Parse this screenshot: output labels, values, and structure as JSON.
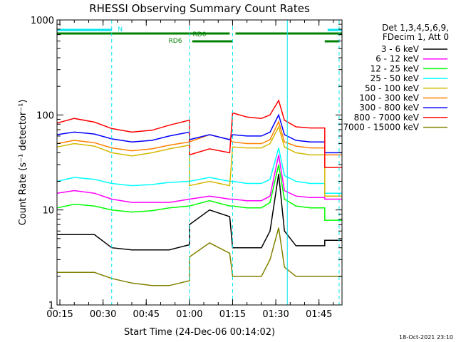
{
  "chart_data": {
    "type": "line",
    "title": "RHESSI Observing Summary Count Rates",
    "xlabel": "Start Time (24-Dec-06 00:14:02)",
    "ylabel": "Count Rate (s⁻¹ detector⁻¹)",
    "y_scale": "log",
    "ylim": [
      1,
      1000
    ],
    "xlim": [
      "00:14",
      "01:53"
    ],
    "x_ticks": [
      "00:15",
      "00:30",
      "00:45",
      "01:00",
      "01:15",
      "01:30",
      "01:45"
    ],
    "y_ticks": [
      "1",
      "10",
      "100",
      "1000"
    ],
    "legend_header": [
      "Det 1,3,4,5,6,9,",
      "FDecim 1, Att 0"
    ],
    "timestamp": "18-Oct-2021 23:10",
    "state_bars": [
      {
        "label": "N",
        "color": "#00e5ee",
        "segments": [
          [
            "00:14",
            "00:33"
          ],
          [
            "01:48",
            "01:53"
          ]
        ]
      },
      {
        "label": "RD0",
        "color": "#008000",
        "segments": [
          [
            "00:14",
            "01:14"
          ],
          [
            "01:16",
            "01:53"
          ]
        ]
      },
      {
        "label": "RD6",
        "color": "#008000",
        "segments": [
          [
            "01:01",
            "01:15"
          ],
          [
            "01:47",
            "01:52"
          ]
        ]
      }
    ],
    "markers": [
      {
        "time": "00:14",
        "color": "#00e5ee",
        "style": "solid"
      },
      {
        "time": "00:33",
        "color": "#00e5ee",
        "style": "dashed"
      },
      {
        "time": "01:00",
        "color": "#00e5ee",
        "style": "dashed"
      },
      {
        "time": "01:15",
        "color": "#00e5ee",
        "style": "dashed"
      },
      {
        "time": "01:34",
        "color": "#00e5ee",
        "style": "solid"
      },
      {
        "time": "01:52",
        "color": "#00e5ee",
        "style": "dashed"
      }
    ],
    "x": [
      "00:14",
      "00:20",
      "00:27",
      "00:33",
      "00:40",
      "00:47",
      "00:53",
      "01:00",
      "01:00",
      "01:07",
      "01:14",
      "01:15",
      "01:20",
      "01:25",
      "01:28",
      "01:31",
      "01:33",
      "01:37",
      "01:42",
      "01:47",
      "01:47",
      "01:53"
    ],
    "series": [
      {
        "name": "3 - 6 keV",
        "color": "#000000",
        "values": [
          5.5,
          5.5,
          5.5,
          4.0,
          3.8,
          3.8,
          3.8,
          4.3,
          7.0,
          10.0,
          8.5,
          4.0,
          4.0,
          4.0,
          6.0,
          24.0,
          6.0,
          4.2,
          4.2,
          4.2,
          4.8,
          4.8
        ]
      },
      {
        "name": "6 - 12 keV",
        "color": "#ff00ff",
        "values": [
          15,
          16,
          15,
          13,
          12,
          12,
          12,
          13,
          13,
          14,
          13,
          13,
          12.5,
          12.5,
          14,
          38,
          16,
          14,
          13.5,
          13.5,
          13,
          13
        ]
      },
      {
        "name": "12 - 25 keV",
        "color": "#00ff00",
        "values": [
          10.5,
          11.5,
          11,
          10,
          9.5,
          9.8,
          10.5,
          11,
          11,
          12.5,
          11,
          11,
          10.5,
          10.5,
          12,
          30,
          13,
          11,
          10.5,
          10.5,
          7.8,
          7.8
        ]
      },
      {
        "name": "25 - 50 keV",
        "color": "#00ffff",
        "values": [
          20,
          22,
          21,
          19,
          18,
          18.5,
          19.5,
          20,
          20,
          22,
          20,
          20,
          19,
          19,
          21,
          45,
          23,
          20,
          19,
          19,
          15,
          15
        ]
      },
      {
        "name": "50 - 100 keV",
        "color": "#d4b800",
        "values": [
          46,
          50,
          47,
          40,
          37,
          40,
          44,
          48,
          18,
          20,
          18,
          46,
          45,
          45,
          50,
          75,
          46,
          40,
          38,
          38,
          14,
          14
        ]
      },
      {
        "name": "100 - 300 keV",
        "color": "#ff8000",
        "values": [
          50,
          54,
          51,
          45,
          42,
          44,
          48,
          52,
          52,
          62,
          55,
          52,
          50,
          50,
          55,
          85,
          52,
          47,
          45,
          45,
          38,
          38
        ]
      },
      {
        "name": "300 - 800 keV",
        "color": "#0000ff",
        "values": [
          62,
          66,
          63,
          56,
          52,
          54,
          60,
          66,
          55,
          62,
          55,
          62,
          60,
          60,
          66,
          100,
          62,
          54,
          52,
          52,
          40,
          40
        ]
      },
      {
        "name": "800 - 7000 keV",
        "color": "#ff0000",
        "values": [
          82,
          92,
          84,
          72,
          66,
          69,
          78,
          88,
          38,
          44,
          40,
          105,
          95,
          92,
          100,
          142,
          88,
          75,
          73,
          73,
          28,
          28
        ]
      },
      {
        "name": "7000 - 15000 keV",
        "color": "#808000",
        "values": [
          2.2,
          2.2,
          2.2,
          1.9,
          1.7,
          1.6,
          1.6,
          1.8,
          3.2,
          4.5,
          3.5,
          2.0,
          2.0,
          2.0,
          3.0,
          6.5,
          2.5,
          2.0,
          2.0,
          2.0,
          2.0,
          2.0
        ]
      }
    ]
  }
}
